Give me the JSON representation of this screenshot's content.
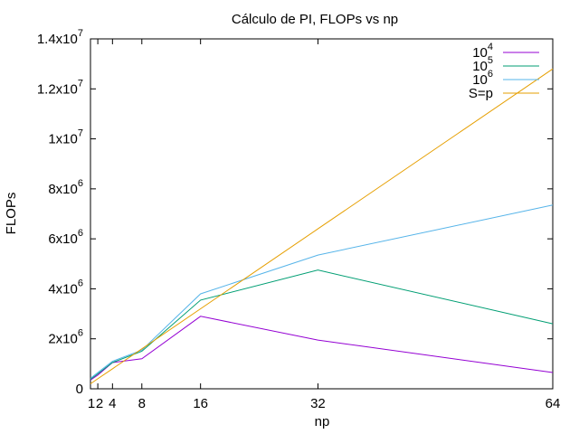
{
  "chart_data": {
    "type": "line",
    "title": "Cálculo de PI, FLOPs vs np",
    "xlabel": "np",
    "ylabel": "FLOPs",
    "xlim": [
      1,
      64
    ],
    "ylim": [
      0,
      14000000
    ],
    "grid": false,
    "legend_position": "top-right",
    "x_ticks": [
      {
        "value": 1,
        "label": "1"
      },
      {
        "value": 2,
        "label": "2"
      },
      {
        "value": 4,
        "label": "4"
      },
      {
        "value": 8,
        "label": "8"
      },
      {
        "value": 16,
        "label": "16"
      },
      {
        "value": 32,
        "label": "32"
      },
      {
        "value": 64,
        "label": "64"
      }
    ],
    "y_ticks": [
      {
        "value": 0,
        "mantissa": "0",
        "base": "",
        "exponent": ""
      },
      {
        "value": 2000000,
        "mantissa": "2x10",
        "base": "",
        "exponent": "6"
      },
      {
        "value": 4000000,
        "mantissa": "4x10",
        "base": "",
        "exponent": "6"
      },
      {
        "value": 6000000,
        "mantissa": "6x10",
        "base": "",
        "exponent": "6"
      },
      {
        "value": 8000000,
        "mantissa": "8x10",
        "base": "",
        "exponent": "6"
      },
      {
        "value": 10000000,
        "mantissa": "1x10",
        "base": "",
        "exponent": "7"
      },
      {
        "value": 12000000,
        "mantissa": "1.2x10",
        "base": "",
        "exponent": "7"
      },
      {
        "value": 14000000,
        "mantissa": "1.4x10",
        "base": "",
        "exponent": "7"
      }
    ],
    "x": [
      1,
      2,
      4,
      8,
      16,
      32,
      64
    ],
    "series": [
      {
        "name_base": "10",
        "name_exp": "4",
        "color": "#9400d3",
        "values": [
          350000,
          550000,
          1050000,
          1200000,
          2900000,
          1950000,
          650000
        ]
      },
      {
        "name_base": "10",
        "name_exp": "5",
        "color": "#009e73",
        "values": [
          380000,
          600000,
          1050000,
          1500000,
          3550000,
          4750000,
          2600000
        ]
      },
      {
        "name_base": "10",
        "name_exp": "6",
        "color": "#56b4e9",
        "values": [
          420000,
          650000,
          1100000,
          1550000,
          3800000,
          5350000,
          7350000
        ]
      },
      {
        "name_base": "S=p",
        "name_exp": "",
        "color": "#e69f00",
        "values": [
          200000,
          400000,
          800000,
          1600000,
          3200000,
          6400000,
          12800000
        ]
      }
    ]
  }
}
